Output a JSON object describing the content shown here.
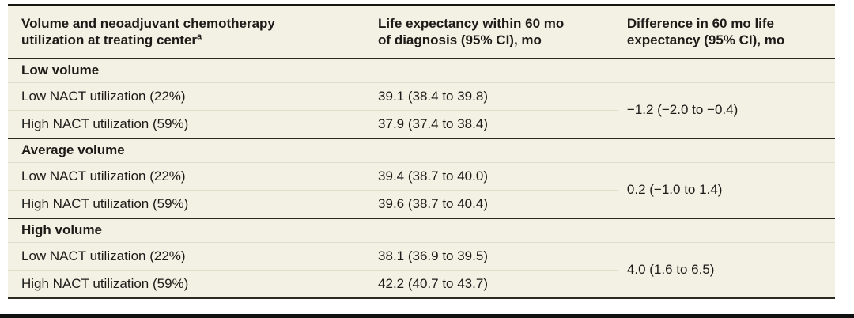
{
  "table": {
    "header": {
      "col1": "Volume and neoadjuvant chemotherapy utilization at treating center",
      "col1_sup": "a",
      "col2": "Life expectancy within 60 mo of diagnosis (95% CI), mo",
      "col3": "Difference in 60 mo life expectancy (95% CI), mo"
    },
    "sections": [
      {
        "label": "Low volume",
        "rows": [
          {
            "label": "Low NACT utilization (22%)",
            "value": "39.1 (38.4 to 39.8)"
          },
          {
            "label": "High NACT utilization (59%)",
            "value": "37.9 (37.4 to 38.4)"
          }
        ],
        "difference": "−1.2 (−2.0 to −0.4)"
      },
      {
        "label": "Average volume",
        "rows": [
          {
            "label": "Low NACT utilization (22%)",
            "value": "39.4 (38.7 to 40.0)"
          },
          {
            "label": "High NACT utilization (59%)",
            "value": "39.6 (38.7 to 40.4)"
          }
        ],
        "difference": "0.2 (−1.0 to 1.4)"
      },
      {
        "label": "High volume",
        "rows": [
          {
            "label": "Low NACT utilization (22%)",
            "value": "38.1 (36.9 to 39.5)"
          },
          {
            "label": "High NACT utilization (59%)",
            "value": "42.2 (40.7 to 43.7)"
          }
        ],
        "difference": "4.0 (1.6 to 6.5)"
      }
    ],
    "colors": {
      "table_background": "#f2f1e4",
      "light_divider": "#dfddc9",
      "dark_rule": "#2b2a22",
      "text": "#1c1b18"
    }
  }
}
